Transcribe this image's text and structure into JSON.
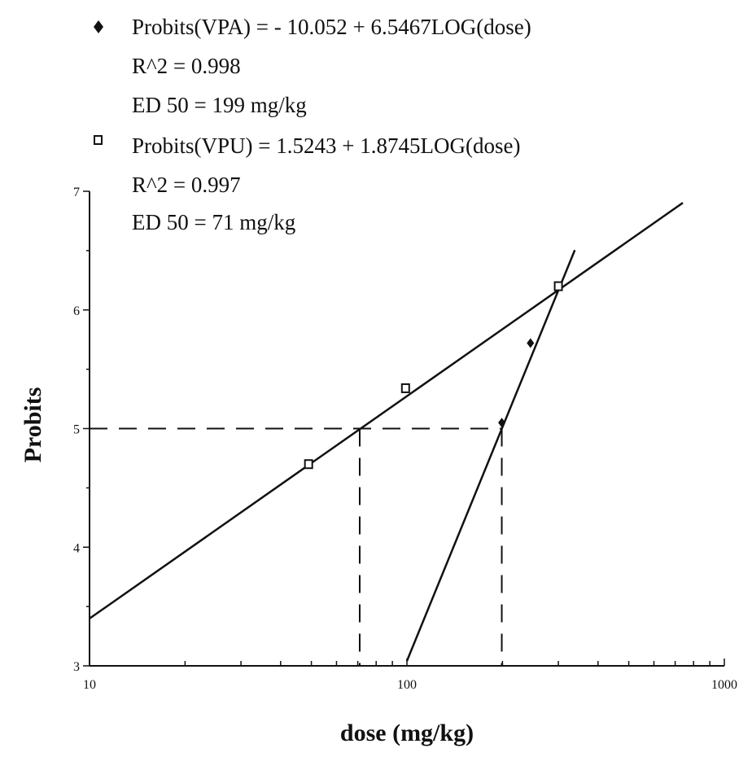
{
  "chart_data": {
    "type": "scatter",
    "xlabel": "dose (mg/kg)",
    "ylabel": "Probits",
    "x_scale": "log",
    "xlim": [
      10,
      1000
    ],
    "ylim": [
      3,
      7
    ],
    "x_ticks": [
      {
        "value": 10,
        "label": "10"
      },
      {
        "value": 100,
        "label": "100"
      },
      {
        "value": 1000,
        "label": "1000"
      }
    ],
    "y_ticks": [
      {
        "value": 3,
        "label": "3"
      },
      {
        "value": 4,
        "label": "4"
      },
      {
        "value": 5,
        "label": "5"
      },
      {
        "value": 6,
        "label": "6"
      },
      {
        "value": 7,
        "label": "7"
      }
    ],
    "legend_position": "top",
    "series": [
      {
        "marker": "filled-diamond",
        "equation": "Probits(VPA) = - 10.052 + 6.5467LOG(dose)",
        "r2": "R^2 = 0.998",
        "ed50": "ED 50 = 199  mg/kg",
        "ed50_value": 199,
        "intercept": -10.052,
        "slope": 6.5467,
        "fit_range": [
          100,
          338
        ],
        "points": [
          {
            "x": 199,
            "y": 5.05
          },
          {
            "x": 245,
            "y": 5.72
          },
          {
            "x": 298,
            "y": 6.2
          }
        ]
      },
      {
        "marker": "open-square",
        "equation": "Probits(VPU) = 1.5243 + 1.8745LOG(dose)",
        "r2": "R^2 = 0.997",
        "ed50": "ED 50 = 71 mg/kg",
        "ed50_value": 71,
        "intercept": 1.5243,
        "slope": 1.8745,
        "fit_range": [
          10,
          740
        ],
        "points": [
          {
            "x": 49,
            "y": 4.7
          },
          {
            "x": 99,
            "y": 5.34
          },
          {
            "x": 300,
            "y": 6.2
          }
        ]
      }
    ],
    "colors": {
      "ink": "#111111",
      "background": "#ffffff"
    }
  }
}
